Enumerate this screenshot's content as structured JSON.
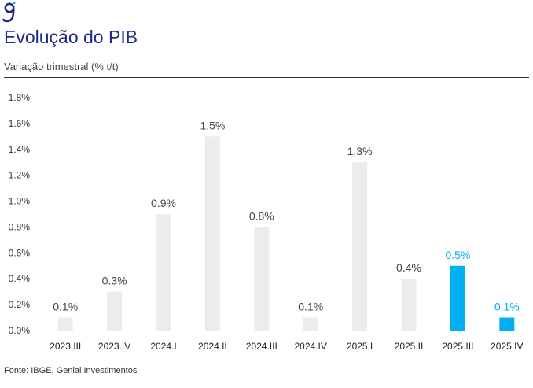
{
  "header": {
    "title": "Evolução do PIB",
    "subtitle": "Variação trimestral (% t/t)",
    "logo_icon": "genial-g-logo-icon"
  },
  "footer": {
    "source": "Fonte: IBGE, Genial Investimentos"
  },
  "colors": {
    "title": "#1f2a8a",
    "bar_default": "#ececec",
    "bar_highlight": "#00b0f0",
    "label_default": "#444444",
    "label_highlight": "#00b0f0"
  },
  "chart_data": {
    "type": "bar",
    "title": "Evolução do PIB",
    "subtitle": "Variação trimestral (% t/t)",
    "categories": [
      "2023.III",
      "2023.IV",
      "2024.I",
      "2024.II",
      "2024.III",
      "2024.IV",
      "2025.I",
      "2025.II",
      "2025.III",
      "2025.IV"
    ],
    "values": [
      0.1,
      0.3,
      0.9,
      1.5,
      0.8,
      0.1,
      1.3,
      0.4,
      0.5,
      0.1
    ],
    "value_labels": [
      "0.1%",
      "0.3%",
      "0.9%",
      "1.5%",
      "0.8%",
      "0.1%",
      "1.3%",
      "0.4%",
      "0.5%",
      "0.1%"
    ],
    "highlighted": [
      false,
      false,
      false,
      false,
      false,
      false,
      false,
      false,
      true,
      true
    ],
    "y_ticks": [
      0.0,
      0.2,
      0.4,
      0.6,
      0.8,
      1.0,
      1.2,
      1.4,
      1.6,
      1.8
    ],
    "y_tick_labels": [
      "0.0%",
      "0.2%",
      "0.4%",
      "0.6%",
      "0.8%",
      "1.0%",
      "1.2%",
      "1.4%",
      "1.6%",
      "1.8%"
    ],
    "ylim": [
      0,
      1.8
    ],
    "grid": false,
    "legend": "none"
  }
}
